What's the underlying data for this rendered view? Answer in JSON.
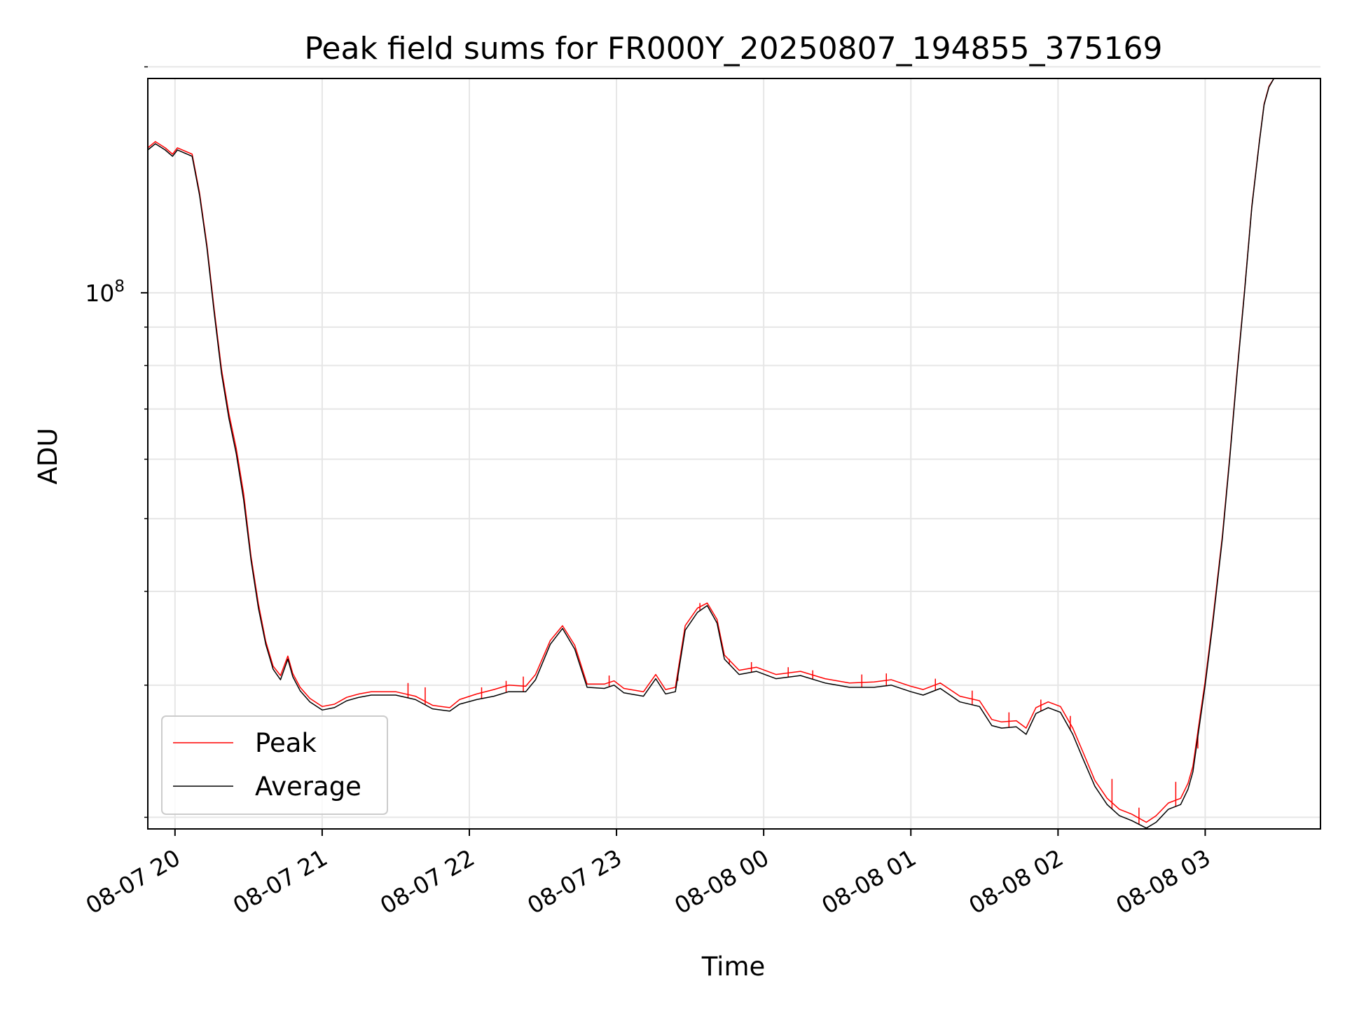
{
  "chart_data": {
    "type": "line",
    "title": "Peak field sums for FR000Y_20250807_194855_375169",
    "xlabel": "Time",
    "ylabel": "ADU",
    "x_axis": {
      "type": "time",
      "range": [
        "2025-08-07 19:48:55",
        "2025-08-08 03:47:00"
      ],
      "ticks": [
        {
          "time": "2025-08-07 20:00",
          "label": "08-07 20"
        },
        {
          "time": "2025-08-07 21:00",
          "label": "08-07 21"
        },
        {
          "time": "2025-08-07 22:00",
          "label": "08-07 22"
        },
        {
          "time": "2025-08-07 23:00",
          "label": "08-07 23"
        },
        {
          "time": "2025-08-08 00:00",
          "label": "08-08 00"
        },
        {
          "time": "2025-08-08 01:00",
          "label": "08-08 01"
        },
        {
          "time": "2025-08-08 02:00",
          "label": "08-08 02"
        },
        {
          "time": "2025-08-08 03:00",
          "label": "08-08 03"
        }
      ]
    },
    "y_axis": {
      "scale": "log",
      "range": [
        19300000,
        193000000
      ],
      "major_ticks": [
        {
          "value": 100000000,
          "base": "10",
          "exponent": "8"
        }
      ],
      "minor_ticks": [
        20000000,
        30000000,
        40000000,
        50000000,
        60000000,
        70000000,
        80000000,
        90000000,
        200000000
      ]
    },
    "grid": true,
    "legend": {
      "position": "lower-left"
    },
    "series": [
      {
        "name": "Average",
        "color": "#000000",
        "points": [
          [
            "2025-08-07 19:48:55",
            155000000
          ],
          [
            "2025-08-07 19:52:00",
            158000000
          ],
          [
            "2025-08-07 19:56:00",
            155000000
          ],
          [
            "2025-08-07 19:59:00",
            152000000
          ],
          [
            "2025-08-07 20:01:00",
            155000000
          ],
          [
            "2025-08-07 20:07:00",
            152000000
          ],
          [
            "2025-08-07 20:10:00",
            135000000
          ],
          [
            "2025-08-07 20:13:00",
            115000000
          ],
          [
            "2025-08-07 20:16:00",
            94000000
          ],
          [
            "2025-08-07 20:19:00",
            78000000
          ],
          [
            "2025-08-07 20:22:00",
            68000000
          ],
          [
            "2025-08-07 20:25:00",
            61000000
          ],
          [
            "2025-08-07 20:28:00",
            53000000
          ],
          [
            "2025-08-07 20:31:00",
            44000000
          ],
          [
            "2025-08-07 20:34:00",
            38000000
          ],
          [
            "2025-08-07 20:37:00",
            34000000
          ],
          [
            "2025-08-07 20:40:00",
            31500000
          ],
          [
            "2025-08-07 20:43:00",
            30500000
          ],
          [
            "2025-08-07 20:46:00",
            32500000
          ],
          [
            "2025-08-07 20:48:00",
            30800000
          ],
          [
            "2025-08-07 20:51:00",
            29500000
          ],
          [
            "2025-08-07 20:55:00",
            28500000
          ],
          [
            "2025-08-07 21:00:00",
            27800000
          ],
          [
            "2025-08-07 21:05:00",
            28000000
          ],
          [
            "2025-08-07 21:10:00",
            28600000
          ],
          [
            "2025-08-07 21:15:00",
            28900000
          ],
          [
            "2025-08-07 21:20:00",
            29100000
          ],
          [
            "2025-08-07 21:30:00",
            29100000
          ],
          [
            "2025-08-07 21:38:00",
            28700000
          ],
          [
            "2025-08-07 21:45:00",
            27900000
          ],
          [
            "2025-08-07 21:52:00",
            27700000
          ],
          [
            "2025-08-07 21:56:00",
            28300000
          ],
          [
            "2025-08-07 22:03:00",
            28700000
          ],
          [
            "2025-08-07 22:10:00",
            29000000
          ],
          [
            "2025-08-07 22:16:00",
            29400000
          ],
          [
            "2025-08-07 22:23:00",
            29400000
          ],
          [
            "2025-08-07 22:27:00",
            30500000
          ],
          [
            "2025-08-07 22:33:00",
            34000000
          ],
          [
            "2025-08-07 22:38:00",
            35700000
          ],
          [
            "2025-08-07 22:43:00",
            33500000
          ],
          [
            "2025-08-07 22:48:00",
            29800000
          ],
          [
            "2025-08-07 22:55:00",
            29700000
          ],
          [
            "2025-08-07 22:59:00",
            30000000
          ],
          [
            "2025-08-07 23:03:00",
            29300000
          ],
          [
            "2025-08-07 23:11:00",
            29000000
          ],
          [
            "2025-08-07 23:16:00",
            30600000
          ],
          [
            "2025-08-07 23:20:00",
            29200000
          ],
          [
            "2025-08-07 23:24:00",
            29400000
          ],
          [
            "2025-08-07 23:28:00",
            35500000
          ],
          [
            "2025-08-07 23:33:00",
            37500000
          ],
          [
            "2025-08-07 23:37:00",
            38300000
          ],
          [
            "2025-08-07 23:41:00",
            36300000
          ],
          [
            "2025-08-07 23:44:00",
            32500000
          ],
          [
            "2025-08-07 23:50:00",
            31000000
          ],
          [
            "2025-08-07 23:57:00",
            31300000
          ],
          [
            "2025-08-08 00:05:00",
            30600000
          ],
          [
            "2025-08-08 00:15:00",
            30900000
          ],
          [
            "2025-08-08 00:25:00",
            30200000
          ],
          [
            "2025-08-08 00:35:00",
            29800000
          ],
          [
            "2025-08-08 00:45:00",
            29800000
          ],
          [
            "2025-08-08 00:52:00",
            30000000
          ],
          [
            "2025-08-08 01:00:00",
            29400000
          ],
          [
            "2025-08-08 01:05:00",
            29100000
          ],
          [
            "2025-08-08 01:12:00",
            29700000
          ],
          [
            "2025-08-08 01:20:00",
            28500000
          ],
          [
            "2025-08-08 01:28:00",
            28100000
          ],
          [
            "2025-08-08 01:33:00",
            26500000
          ],
          [
            "2025-08-08 01:37:00",
            26300000
          ],
          [
            "2025-08-08 01:43:00",
            26400000
          ],
          [
            "2025-08-08 01:47:00",
            25800000
          ],
          [
            "2025-08-08 01:51:00",
            27500000
          ],
          [
            "2025-08-08 01:56:00",
            28000000
          ],
          [
            "2025-08-08 02:01:00",
            27600000
          ],
          [
            "2025-08-08 02:06:00",
            25800000
          ],
          [
            "2025-08-08 02:10:00",
            24000000
          ],
          [
            "2025-08-08 02:15:00",
            22000000
          ],
          [
            "2025-08-08 02:20:00",
            20800000
          ],
          [
            "2025-08-08 02:25:00",
            20100000
          ],
          [
            "2025-08-08 02:30:00",
            19800000
          ],
          [
            "2025-08-08 02:36:00",
            19350000
          ],
          [
            "2025-08-08 02:40:00",
            19700000
          ],
          [
            "2025-08-08 02:45:00",
            20500000
          ],
          [
            "2025-08-08 02:50:00",
            20800000
          ],
          [
            "2025-08-08 02:53:00",
            21800000
          ],
          [
            "2025-08-08 02:55:00",
            23000000
          ],
          [
            "2025-08-08 02:58:00",
            27000000
          ],
          [
            "2025-08-08 03:00:00",
            30000000
          ],
          [
            "2025-08-08 03:03:00",
            36000000
          ],
          [
            "2025-08-08 03:07:00",
            47000000
          ],
          [
            "2025-08-08 03:10:00",
            60000000
          ],
          [
            "2025-08-08 03:13:00",
            78000000
          ],
          [
            "2025-08-08 03:16:00",
            100000000
          ],
          [
            "2025-08-08 03:19:00",
            130000000
          ],
          [
            "2025-08-08 03:22:00",
            158000000
          ],
          [
            "2025-08-08 03:24:00",
            178000000
          ],
          [
            "2025-08-08 03:26:00",
            188000000
          ],
          [
            "2025-08-08 03:28:00",
            193000000
          ]
        ]
      },
      {
        "name": "Peak",
        "color": "#ff0000",
        "points": [
          [
            "2025-08-07 19:48:55",
            156000000
          ],
          [
            "2025-08-07 19:52:00",
            159000000
          ],
          [
            "2025-08-07 19:56:00",
            156000000
          ],
          [
            "2025-08-07 19:59:00",
            153000000
          ],
          [
            "2025-08-07 20:01:00",
            156000000
          ],
          [
            "2025-08-07 20:07:00",
            153000000
          ],
          [
            "2025-08-07 20:10:00",
            136000000
          ],
          [
            "2025-08-07 20:13:00",
            116000000
          ],
          [
            "2025-08-07 20:16:00",
            95000000
          ],
          [
            "2025-08-07 20:19:00",
            79000000
          ],
          [
            "2025-08-07 20:22:00",
            69000000
          ],
          [
            "2025-08-07 20:25:00",
            62000000
          ],
          [
            "2025-08-07 20:28:00",
            54000000
          ],
          [
            "2025-08-07 20:31:00",
            44500000
          ],
          [
            "2025-08-07 20:34:00",
            38500000
          ],
          [
            "2025-08-07 20:37:00",
            34300000
          ],
          [
            "2025-08-07 20:40:00",
            31800000
          ],
          [
            "2025-08-07 20:43:00",
            30900000
          ],
          [
            "2025-08-07 20:46:00",
            32800000
          ],
          [
            "2025-08-07 20:48:00",
            31100000
          ],
          [
            "2025-08-07 20:51:00",
            29800000
          ],
          [
            "2025-08-07 20:55:00",
            28800000
          ],
          [
            "2025-08-07 21:00:00",
            28100000
          ],
          [
            "2025-08-07 21:05:00",
            28300000
          ],
          [
            "2025-08-07 21:10:00",
            28900000
          ],
          [
            "2025-08-07 21:15:00",
            29200000
          ],
          [
            "2025-08-07 21:20:00",
            29400000
          ],
          [
            "2025-08-07 21:30:00",
            29400000
          ],
          [
            "2025-08-07 21:38:00",
            29000000
          ],
          [
            "2025-08-07 21:45:00",
            28200000
          ],
          [
            "2025-08-07 21:52:00",
            28000000
          ],
          [
            "2025-08-07 21:56:00",
            28700000
          ],
          [
            "2025-08-07 22:03:00",
            29200000
          ],
          [
            "2025-08-07 22:10:00",
            29600000
          ],
          [
            "2025-08-07 22:16:00",
            30000000
          ],
          [
            "2025-08-07 22:23:00",
            29900000
          ],
          [
            "2025-08-07 22:27:00",
            31000000
          ],
          [
            "2025-08-07 22:33:00",
            34400000
          ],
          [
            "2025-08-07 22:38:00",
            36000000
          ],
          [
            "2025-08-07 22:43:00",
            33900000
          ],
          [
            "2025-08-07 22:48:00",
            30100000
          ],
          [
            "2025-08-07 22:55:00",
            30100000
          ],
          [
            "2025-08-07 22:59:00",
            30400000
          ],
          [
            "2025-08-07 23:03:00",
            29700000
          ],
          [
            "2025-08-07 23:11:00",
            29400000
          ],
          [
            "2025-08-07 23:16:00",
            31000000
          ],
          [
            "2025-08-07 23:20:00",
            29600000
          ],
          [
            "2025-08-07 23:24:00",
            29800000
          ],
          [
            "2025-08-07 23:28:00",
            36000000
          ],
          [
            "2025-08-07 23:33:00",
            38000000
          ],
          [
            "2025-08-07 23:37:00",
            38600000
          ],
          [
            "2025-08-07 23:41:00",
            36700000
          ],
          [
            "2025-08-07 23:44:00",
            32900000
          ],
          [
            "2025-08-07 23:50:00",
            31400000
          ],
          [
            "2025-08-07 23:57:00",
            31700000
          ],
          [
            "2025-08-08 00:05:00",
            31000000
          ],
          [
            "2025-08-08 00:15:00",
            31300000
          ],
          [
            "2025-08-08 00:25:00",
            30600000
          ],
          [
            "2025-08-08 00:35:00",
            30200000
          ],
          [
            "2025-08-08 00:45:00",
            30300000
          ],
          [
            "2025-08-08 00:52:00",
            30500000
          ],
          [
            "2025-08-08 01:00:00",
            29900000
          ],
          [
            "2025-08-08 01:05:00",
            29600000
          ],
          [
            "2025-08-08 01:12:00",
            30200000
          ],
          [
            "2025-08-08 01:20:00",
            29000000
          ],
          [
            "2025-08-08 01:28:00",
            28600000
          ],
          [
            "2025-08-08 01:33:00",
            27000000
          ],
          [
            "2025-08-08 01:37:00",
            26800000
          ],
          [
            "2025-08-08 01:43:00",
            26900000
          ],
          [
            "2025-08-08 01:47:00",
            26300000
          ],
          [
            "2025-08-08 01:51:00",
            28000000
          ],
          [
            "2025-08-08 01:56:00",
            28500000
          ],
          [
            "2025-08-08 02:01:00",
            28100000
          ],
          [
            "2025-08-08 02:06:00",
            26300000
          ],
          [
            "2025-08-08 02:10:00",
            24500000
          ],
          [
            "2025-08-08 02:15:00",
            22400000
          ],
          [
            "2025-08-08 02:20:00",
            21200000
          ],
          [
            "2025-08-08 02:25:00",
            20500000
          ],
          [
            "2025-08-08 02:30:00",
            20200000
          ],
          [
            "2025-08-08 02:36:00",
            19700000
          ],
          [
            "2025-08-08 02:40:00",
            20100000
          ],
          [
            "2025-08-08 02:45:00",
            20900000
          ],
          [
            "2025-08-08 02:50:00",
            21200000
          ],
          [
            "2025-08-08 02:53:00",
            22200000
          ],
          [
            "2025-08-08 02:55:00",
            23400000
          ],
          [
            "2025-08-08 02:58:00",
            27400000
          ],
          [
            "2025-08-08 03:00:00",
            30400000
          ],
          [
            "2025-08-08 03:03:00",
            36400000
          ],
          [
            "2025-08-08 03:07:00",
            47400000
          ],
          [
            "2025-08-08 03:10:00",
            60400000
          ],
          [
            "2025-08-08 03:13:00",
            78500000
          ],
          [
            "2025-08-08 03:16:00",
            100500000
          ],
          [
            "2025-08-08 03:19:00",
            130500000
          ],
          [
            "2025-08-08 03:22:00",
            158500000
          ],
          [
            "2025-08-08 03:24:00",
            178500000
          ],
          [
            "2025-08-08 03:26:00",
            188500000
          ],
          [
            "2025-08-08 03:28:00",
            193000000
          ]
        ],
        "spikes": [
          [
            "2025-08-07 21:35:00",
            30200000
          ],
          [
            "2025-08-07 21:42:00",
            29800000
          ],
          [
            "2025-08-07 22:05:00",
            29800000
          ],
          [
            "2025-08-07 22:15:00",
            30400000
          ],
          [
            "2025-08-07 22:22:00",
            30800000
          ],
          [
            "2025-08-07 22:57:00",
            30900000
          ],
          [
            "2025-08-07 23:25:00",
            30400000
          ],
          [
            "2025-08-07 23:34:00",
            38600000
          ],
          [
            "2025-08-07 23:46:00",
            32500000
          ],
          [
            "2025-08-07 23:55:00",
            32200000
          ],
          [
            "2025-08-08 00:10:00",
            31700000
          ],
          [
            "2025-08-08 00:20:00",
            31400000
          ],
          [
            "2025-08-08 00:40:00",
            31000000
          ],
          [
            "2025-08-08 00:50:00",
            31100000
          ],
          [
            "2025-08-08 01:10:00",
            30600000
          ],
          [
            "2025-08-08 01:25:00",
            29500000
          ],
          [
            "2025-08-08 01:40:00",
            27600000
          ],
          [
            "2025-08-08 01:53:00",
            28700000
          ],
          [
            "2025-08-08 02:05:00",
            27300000
          ],
          [
            "2025-08-08 02:22:00",
            22500000
          ],
          [
            "2025-08-08 02:33:00",
            20600000
          ],
          [
            "2025-08-08 02:48:00",
            22300000
          ],
          [
            "2025-08-08 02:57:00",
            24700000
          ]
        ]
      }
    ]
  }
}
